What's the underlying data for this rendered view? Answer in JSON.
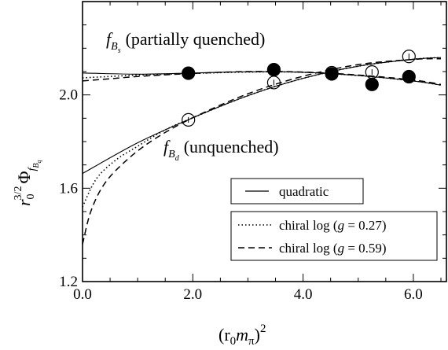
{
  "chart_data": {
    "type": "scatter",
    "xlim": [
      0.0,
      6.6
    ],
    "ylim": [
      1.2,
      2.4
    ],
    "x_ticks": [
      0.0,
      2.0,
      4.0,
      6.0
    ],
    "x_tick_labels": [
      "0.0",
      "2.0",
      "4.0",
      "6.0"
    ],
    "y_ticks": [
      1.2,
      1.6,
      2.0
    ],
    "y_tick_labels": [
      "1.2",
      "1.6",
      "2.0"
    ],
    "xlabel": {
      "main": "(r",
      "sub1": "0",
      "mid": "m",
      "sub2": "π",
      "close": ")",
      "sup": "2"
    },
    "ylabel": {
      "r": "r",
      "r_sub": "0",
      "r_sup": "3/2",
      "phi": "Φ",
      "f": "f",
      "B": "B",
      "q": "q"
    },
    "annotations": {
      "partially_quenched": {
        "f": "f",
        "B": "B",
        "s": "s",
        "text": "(partially quenched)"
      },
      "unquenched": {
        "f": "f",
        "B": "B",
        "d": "d",
        "text": "(unquenched)"
      }
    },
    "legend": {
      "placement": "bottom-right",
      "box1": [
        {
          "label": "quadratic",
          "style": "solid"
        }
      ],
      "box2": [
        {
          "label_pre": "chiral log (",
          "g": "g",
          "label_post": " = 0.27)",
          "style": "dotted"
        },
        {
          "label_pre": "chiral log (",
          "g": "g",
          "label_post": " = 0.59)",
          "style": "dashed"
        }
      ]
    },
    "series": [
      {
        "name": "f_Bs (partially quenched)",
        "marker": "filled-circle",
        "points": [
          {
            "x": 1.92,
            "y": 2.093,
            "err": 0.012
          },
          {
            "x": 3.47,
            "y": 2.108,
            "err": 0.012
          },
          {
            "x": 4.52,
            "y": 2.09,
            "err": 0.012
          },
          {
            "x": 5.25,
            "y": 2.045,
            "err": 0.012
          },
          {
            "x": 5.92,
            "y": 2.078,
            "err": 0.012
          }
        ]
      },
      {
        "name": "f_Bd (unquenched)",
        "marker": "open-circle",
        "points": [
          {
            "x": 1.92,
            "y": 1.893,
            "err": 0.012
          },
          {
            "x": 3.47,
            "y": 2.053,
            "err": 0.012
          },
          {
            "x": 4.52,
            "y": 2.095,
            "err": 0.012
          },
          {
            "x": 5.25,
            "y": 2.098,
            "err": 0.012
          },
          {
            "x": 5.92,
            "y": 2.165,
            "err": 0.012
          }
        ]
      }
    ],
    "fits": {
      "bs_quadratic": [
        [
          0,
          2.094
        ],
        [
          1,
          2.089
        ],
        [
          2,
          2.094
        ],
        [
          3,
          2.099
        ],
        [
          4,
          2.097
        ],
        [
          5,
          2.083
        ],
        [
          6,
          2.06
        ],
        [
          6.5,
          2.042
        ]
      ],
      "bs_dotted": [
        [
          0,
          2.073
        ],
        [
          0.5,
          2.079
        ],
        [
          1,
          2.085
        ],
        [
          2,
          2.092
        ],
        [
          3,
          2.098
        ],
        [
          4,
          2.097
        ],
        [
          5,
          2.083
        ],
        [
          6,
          2.06
        ],
        [
          6.5,
          2.042
        ]
      ],
      "bs_dashed": [
        [
          0,
          2.06
        ],
        [
          0.5,
          2.069
        ],
        [
          1,
          2.079
        ],
        [
          2,
          2.092
        ],
        [
          3,
          2.1
        ],
        [
          4,
          2.098
        ],
        [
          5,
          2.085
        ],
        [
          6,
          2.064
        ],
        [
          6.5,
          2.045
        ]
      ],
      "bd_quadratic": [
        [
          0,
          1.663
        ],
        [
          1,
          1.795
        ],
        [
          2,
          1.902
        ],
        [
          3,
          1.997
        ],
        [
          4,
          2.071
        ],
        [
          5,
          2.123
        ],
        [
          6,
          2.153
        ],
        [
          6.5,
          2.16
        ]
      ],
      "bd_dotted": [
        [
          0,
          1.52
        ],
        [
          0.25,
          1.64
        ],
        [
          0.6,
          1.72
        ],
        [
          1,
          1.78
        ],
        [
          1.5,
          1.85
        ],
        [
          2,
          1.902
        ],
        [
          3,
          1.997
        ],
        [
          4,
          2.071
        ],
        [
          5,
          2.123
        ],
        [
          6,
          2.153
        ],
        [
          6.5,
          2.16
        ]
      ],
      "bd_dashed": [
        [
          0,
          1.36
        ],
        [
          0.15,
          1.5
        ],
        [
          0.4,
          1.62
        ],
        [
          0.8,
          1.72
        ],
        [
          1.3,
          1.81
        ],
        [
          2,
          1.902
        ],
        [
          3,
          2.005
        ],
        [
          4,
          2.08
        ],
        [
          5,
          2.13
        ],
        [
          6,
          2.152
        ],
        [
          6.5,
          2.155
        ]
      ]
    }
  }
}
